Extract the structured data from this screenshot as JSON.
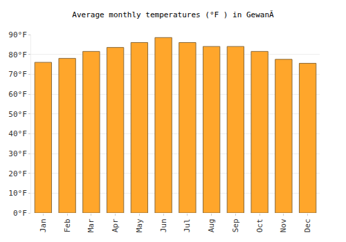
{
  "chart_data": {
    "type": "bar",
    "title": "Average monthly temperatures (°F ) in GewanĂ",
    "categories": [
      "Jan",
      "Feb",
      "Mar",
      "Apr",
      "May",
      "Jun",
      "Jul",
      "Aug",
      "Sep",
      "Oct",
      "Nov",
      "Dec"
    ],
    "values": [
      76,
      78,
      81.5,
      83.5,
      86,
      88.5,
      86,
      84,
      84,
      81.5,
      77.5,
      75.5
    ],
    "color": "#ffa62b",
    "ylim": [
      0,
      90
    ],
    "yticks": [
      {
        "value": 0,
        "label": "0°F"
      },
      {
        "value": 10,
        "label": "10°F"
      },
      {
        "value": 20,
        "label": "20°F"
      },
      {
        "value": 30,
        "label": "30°F"
      },
      {
        "value": 40,
        "label": "40°F"
      },
      {
        "value": 50,
        "label": "50°F"
      },
      {
        "value": 60,
        "label": "60°F"
      },
      {
        "value": 70,
        "label": "70°F"
      },
      {
        "value": 80,
        "label": "80°F"
      },
      {
        "value": 90,
        "label": "90°F"
      }
    ],
    "grid": true
  }
}
